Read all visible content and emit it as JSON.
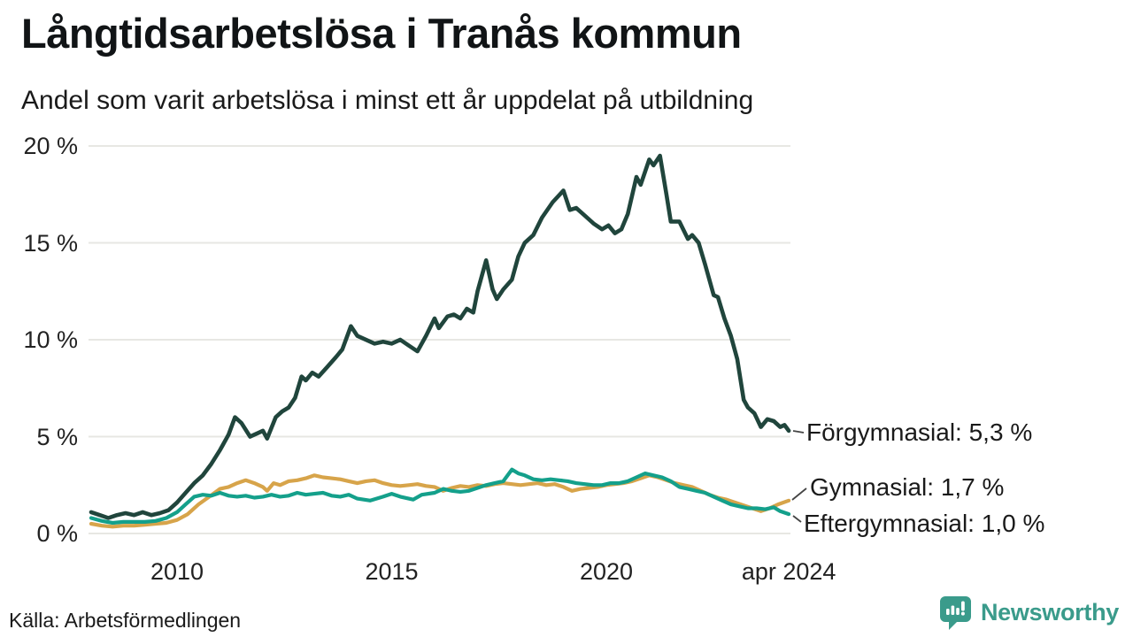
{
  "header": {
    "title": "Långtidsarbetslösa i Tranås kommun",
    "subtitle": "Andel som varit arbetslösa i minst ett år uppdelat på utbildning"
  },
  "footer": {
    "source": "Källa: Arbetsförmedlingen",
    "brand": "Newsworthy"
  },
  "colors": {
    "forgymnasial": "#20453c",
    "gymnasial": "#d7a44a",
    "eftergymnasial": "#14a08b",
    "grid": "#e7e7e3",
    "connector": "#444444",
    "brand_teal": "#3a9b8b"
  },
  "chart_data": {
    "type": "line",
    "title": "Långtidsarbetslösa i Tranås kommun",
    "subtitle": "Andel som varit arbetslösa i minst ett år uppdelat på utbildning",
    "grid": "horizontal",
    "legend_position": "right-end-labels",
    "x_axis": {
      "range": [
        2007.95,
        2024.25
      ],
      "ticks": [
        {
          "value": 2010,
          "label": "2010"
        },
        {
          "value": 2015,
          "label": "2015"
        },
        {
          "value": 2020,
          "label": "2020"
        },
        {
          "value": 2024.25,
          "label": "apr 2024"
        }
      ]
    },
    "y_axis": {
      "unit": "%",
      "range": [
        0,
        20
      ],
      "ticks": [
        {
          "value": 0,
          "label": "0 %"
        },
        {
          "value": 5,
          "label": "5 %"
        },
        {
          "value": 10,
          "label": "10 %"
        },
        {
          "value": 15,
          "label": "15 %"
        },
        {
          "value": 20,
          "label": "20 %"
        }
      ]
    },
    "series": [
      {
        "name": "Förgymnasial",
        "color": "#20453c",
        "end_label": "Förgymnasial: 5,3 %",
        "latest_value": "5,3 %",
        "points": [
          [
            2008.0,
            1.1
          ],
          [
            2008.2,
            0.95
          ],
          [
            2008.4,
            0.8
          ],
          [
            2008.6,
            0.95
          ],
          [
            2008.8,
            1.05
          ],
          [
            2009.0,
            0.95
          ],
          [
            2009.2,
            1.1
          ],
          [
            2009.4,
            0.95
          ],
          [
            2009.6,
            1.05
          ],
          [
            2009.8,
            1.2
          ],
          [
            2010.0,
            1.6
          ],
          [
            2010.2,
            2.1
          ],
          [
            2010.4,
            2.6
          ],
          [
            2010.6,
            3.0
          ],
          [
            2010.8,
            3.6
          ],
          [
            2011.0,
            4.3
          ],
          [
            2011.2,
            5.1
          ],
          [
            2011.35,
            6.0
          ],
          [
            2011.5,
            5.7
          ],
          [
            2011.7,
            5.0
          ],
          [
            2011.9,
            5.2
          ],
          [
            2012.0,
            5.3
          ],
          [
            2012.1,
            4.9
          ],
          [
            2012.3,
            6.0
          ],
          [
            2012.45,
            6.3
          ],
          [
            2012.6,
            6.5
          ],
          [
            2012.75,
            7.0
          ],
          [
            2012.9,
            8.1
          ],
          [
            2013.0,
            7.9
          ],
          [
            2013.15,
            8.3
          ],
          [
            2013.3,
            8.1
          ],
          [
            2013.5,
            8.6
          ],
          [
            2013.7,
            9.1
          ],
          [
            2013.85,
            9.5
          ],
          [
            2014.05,
            10.7
          ],
          [
            2014.2,
            10.2
          ],
          [
            2014.4,
            10.0
          ],
          [
            2014.6,
            9.8
          ],
          [
            2014.8,
            9.9
          ],
          [
            2015.0,
            9.8
          ],
          [
            2015.2,
            10.0
          ],
          [
            2015.4,
            9.7
          ],
          [
            2015.6,
            9.4
          ],
          [
            2015.8,
            10.2
          ],
          [
            2016.0,
            11.1
          ],
          [
            2016.1,
            10.6
          ],
          [
            2016.3,
            11.2
          ],
          [
            2016.45,
            11.3
          ],
          [
            2016.6,
            11.1
          ],
          [
            2016.75,
            11.6
          ],
          [
            2016.9,
            11.4
          ],
          [
            2017.0,
            12.5
          ],
          [
            2017.2,
            14.1
          ],
          [
            2017.35,
            12.6
          ],
          [
            2017.45,
            12.1
          ],
          [
            2017.6,
            12.6
          ],
          [
            2017.8,
            13.1
          ],
          [
            2017.95,
            14.3
          ],
          [
            2018.1,
            15.0
          ],
          [
            2018.3,
            15.4
          ],
          [
            2018.5,
            16.3
          ],
          [
            2018.75,
            17.1
          ],
          [
            2019.0,
            17.7
          ],
          [
            2019.15,
            16.7
          ],
          [
            2019.3,
            16.8
          ],
          [
            2019.5,
            16.4
          ],
          [
            2019.7,
            16.0
          ],
          [
            2019.9,
            15.7
          ],
          [
            2020.05,
            15.9
          ],
          [
            2020.2,
            15.5
          ],
          [
            2020.35,
            15.7
          ],
          [
            2020.5,
            16.5
          ],
          [
            2020.7,
            18.4
          ],
          [
            2020.8,
            18.0
          ],
          [
            2021.0,
            19.3
          ],
          [
            2021.1,
            19.0
          ],
          [
            2021.25,
            19.5
          ],
          [
            2021.4,
            17.5
          ],
          [
            2021.5,
            16.1
          ],
          [
            2021.7,
            16.1
          ],
          [
            2021.9,
            15.2
          ],
          [
            2022.0,
            15.4
          ],
          [
            2022.15,
            15.0
          ],
          [
            2022.3,
            13.9
          ],
          [
            2022.5,
            12.3
          ],
          [
            2022.6,
            12.2
          ],
          [
            2022.75,
            11.1
          ],
          [
            2022.9,
            10.2
          ],
          [
            2023.05,
            9.0
          ],
          [
            2023.2,
            6.9
          ],
          [
            2023.3,
            6.5
          ],
          [
            2023.45,
            6.2
          ],
          [
            2023.6,
            5.5
          ],
          [
            2023.75,
            5.9
          ],
          [
            2023.9,
            5.8
          ],
          [
            2024.05,
            5.5
          ],
          [
            2024.15,
            5.6
          ],
          [
            2024.25,
            5.3
          ]
        ]
      },
      {
        "name": "Gymnasial",
        "color": "#d7a44a",
        "end_label": "Gymnasial: 1,7 %",
        "latest_value": "1,7 %",
        "points": [
          [
            2008.0,
            0.5
          ],
          [
            2008.25,
            0.4
          ],
          [
            2008.5,
            0.35
          ],
          [
            2008.75,
            0.4
          ],
          [
            2009.0,
            0.4
          ],
          [
            2009.25,
            0.45
          ],
          [
            2009.5,
            0.5
          ],
          [
            2009.75,
            0.55
          ],
          [
            2010.0,
            0.7
          ],
          [
            2010.25,
            1.0
          ],
          [
            2010.5,
            1.5
          ],
          [
            2010.75,
            1.9
          ],
          [
            2011.0,
            2.3
          ],
          [
            2011.2,
            2.4
          ],
          [
            2011.4,
            2.6
          ],
          [
            2011.6,
            2.75
          ],
          [
            2011.8,
            2.6
          ],
          [
            2012.0,
            2.4
          ],
          [
            2012.1,
            2.2
          ],
          [
            2012.25,
            2.6
          ],
          [
            2012.4,
            2.5
          ],
          [
            2012.6,
            2.7
          ],
          [
            2012.8,
            2.75
          ],
          [
            2013.0,
            2.85
          ],
          [
            2013.2,
            3.0
          ],
          [
            2013.4,
            2.9
          ],
          [
            2013.6,
            2.85
          ],
          [
            2013.8,
            2.8
          ],
          [
            2014.0,
            2.7
          ],
          [
            2014.2,
            2.6
          ],
          [
            2014.4,
            2.7
          ],
          [
            2014.6,
            2.75
          ],
          [
            2014.8,
            2.6
          ],
          [
            2015.0,
            2.5
          ],
          [
            2015.2,
            2.45
          ],
          [
            2015.4,
            2.5
          ],
          [
            2015.6,
            2.55
          ],
          [
            2015.8,
            2.45
          ],
          [
            2016.0,
            2.4
          ],
          [
            2016.2,
            2.2
          ],
          [
            2016.4,
            2.35
          ],
          [
            2016.6,
            2.45
          ],
          [
            2016.8,
            2.4
          ],
          [
            2017.0,
            2.5
          ],
          [
            2017.2,
            2.45
          ],
          [
            2017.4,
            2.55
          ],
          [
            2017.6,
            2.6
          ],
          [
            2017.8,
            2.55
          ],
          [
            2018.0,
            2.5
          ],
          [
            2018.2,
            2.55
          ],
          [
            2018.4,
            2.6
          ],
          [
            2018.6,
            2.5
          ],
          [
            2018.8,
            2.55
          ],
          [
            2019.0,
            2.4
          ],
          [
            2019.2,
            2.2
          ],
          [
            2019.4,
            2.3
          ],
          [
            2019.6,
            2.35
          ],
          [
            2019.8,
            2.4
          ],
          [
            2020.0,
            2.5
          ],
          [
            2020.2,
            2.55
          ],
          [
            2020.4,
            2.6
          ],
          [
            2020.6,
            2.7
          ],
          [
            2020.8,
            2.85
          ],
          [
            2021.0,
            3.0
          ],
          [
            2021.2,
            2.9
          ],
          [
            2021.4,
            2.75
          ],
          [
            2021.6,
            2.6
          ],
          [
            2021.8,
            2.5
          ],
          [
            2022.0,
            2.4
          ],
          [
            2022.2,
            2.2
          ],
          [
            2022.4,
            2.0
          ],
          [
            2022.6,
            1.85
          ],
          [
            2022.8,
            1.75
          ],
          [
            2023.0,
            1.6
          ],
          [
            2023.2,
            1.45
          ],
          [
            2023.4,
            1.3
          ],
          [
            2023.6,
            1.15
          ],
          [
            2023.8,
            1.3
          ],
          [
            2024.0,
            1.5
          ],
          [
            2024.25,
            1.7
          ]
        ]
      },
      {
        "name": "Eftergymnasial",
        "color": "#14a08b",
        "end_label": "Eftergymnasial: 1,0 %",
        "latest_value": "1,0 %",
        "points": [
          [
            2008.0,
            0.8
          ],
          [
            2008.25,
            0.65
          ],
          [
            2008.5,
            0.55
          ],
          [
            2008.75,
            0.6
          ],
          [
            2009.0,
            0.6
          ],
          [
            2009.25,
            0.6
          ],
          [
            2009.5,
            0.65
          ],
          [
            2009.75,
            0.8
          ],
          [
            2010.0,
            1.1
          ],
          [
            2010.2,
            1.5
          ],
          [
            2010.4,
            1.9
          ],
          [
            2010.6,
            2.0
          ],
          [
            2010.8,
            1.95
          ],
          [
            2011.0,
            2.1
          ],
          [
            2011.2,
            1.95
          ],
          [
            2011.4,
            1.9
          ],
          [
            2011.6,
            1.95
          ],
          [
            2011.8,
            1.85
          ],
          [
            2012.0,
            1.9
          ],
          [
            2012.2,
            2.0
          ],
          [
            2012.4,
            1.9
          ],
          [
            2012.6,
            1.95
          ],
          [
            2012.8,
            2.1
          ],
          [
            2013.0,
            2.0
          ],
          [
            2013.2,
            2.05
          ],
          [
            2013.4,
            2.1
          ],
          [
            2013.6,
            1.95
          ],
          [
            2013.8,
            1.9
          ],
          [
            2014.0,
            2.0
          ],
          [
            2014.2,
            1.8
          ],
          [
            2014.5,
            1.7
          ],
          [
            2014.8,
            1.9
          ],
          [
            2015.0,
            2.05
          ],
          [
            2015.2,
            1.9
          ],
          [
            2015.5,
            1.75
          ],
          [
            2015.7,
            2.0
          ],
          [
            2016.0,
            2.1
          ],
          [
            2016.2,
            2.3
          ],
          [
            2016.4,
            2.2
          ],
          [
            2016.6,
            2.15
          ],
          [
            2016.8,
            2.2
          ],
          [
            2017.0,
            2.35
          ],
          [
            2017.2,
            2.5
          ],
          [
            2017.4,
            2.6
          ],
          [
            2017.6,
            2.7
          ],
          [
            2017.8,
            3.3
          ],
          [
            2017.95,
            3.1
          ],
          [
            2018.1,
            3.0
          ],
          [
            2018.3,
            2.8
          ],
          [
            2018.5,
            2.75
          ],
          [
            2018.7,
            2.8
          ],
          [
            2018.9,
            2.75
          ],
          [
            2019.1,
            2.7
          ],
          [
            2019.3,
            2.6
          ],
          [
            2019.5,
            2.55
          ],
          [
            2019.7,
            2.5
          ],
          [
            2019.9,
            2.5
          ],
          [
            2020.1,
            2.6
          ],
          [
            2020.3,
            2.6
          ],
          [
            2020.5,
            2.7
          ],
          [
            2020.7,
            2.9
          ],
          [
            2020.9,
            3.1
          ],
          [
            2021.1,
            3.0
          ],
          [
            2021.3,
            2.9
          ],
          [
            2021.5,
            2.7
          ],
          [
            2021.7,
            2.4
          ],
          [
            2021.9,
            2.3
          ],
          [
            2022.1,
            2.2
          ],
          [
            2022.3,
            2.1
          ],
          [
            2022.5,
            1.9
          ],
          [
            2022.7,
            1.7
          ],
          [
            2022.9,
            1.5
          ],
          [
            2023.1,
            1.4
          ],
          [
            2023.3,
            1.3
          ],
          [
            2023.5,
            1.3
          ],
          [
            2023.7,
            1.25
          ],
          [
            2023.9,
            1.35
          ],
          [
            2024.05,
            1.15
          ],
          [
            2024.25,
            1.0
          ]
        ]
      }
    ]
  }
}
